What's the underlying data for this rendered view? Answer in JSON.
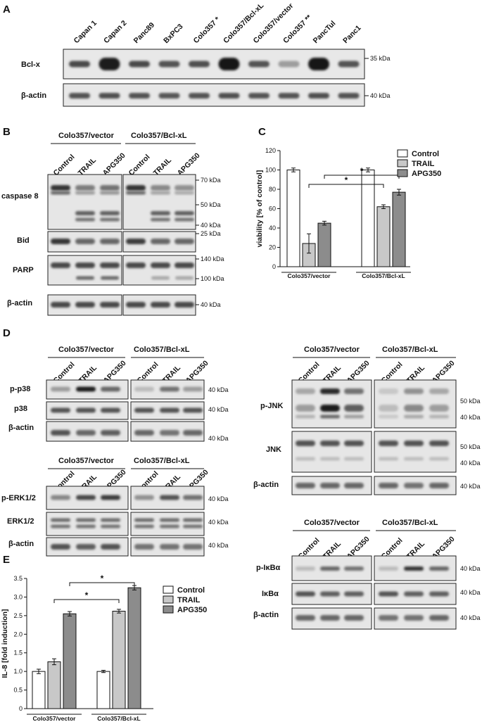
{
  "panels": {
    "a": "A",
    "b": "B",
    "c": "C",
    "d": "D",
    "e": "E"
  },
  "panel_a": {
    "lanes": [
      "Capan 1",
      "Capan 2",
      "Panc89",
      "BxPC3",
      "Colo357 *",
      "Colo357/Bcl-xL",
      "Colo357/vector",
      "Colo357 **",
      "PancTul",
      "Panc1"
    ],
    "rows": [
      {
        "label": "Bcl-x",
        "kda": "35 kDa",
        "intensity": [
          0.75,
          0.95,
          0.75,
          0.7,
          0.72,
          1.0,
          0.7,
          0.35,
          0.98,
          0.7
        ]
      },
      {
        "label": "β-actin",
        "kda": "40 kDa",
        "intensity": [
          0.7,
          0.72,
          0.7,
          0.68,
          0.7,
          0.72,
          0.7,
          0.7,
          0.72,
          0.7
        ]
      }
    ]
  },
  "groups": {
    "vector": "Colo357/vector",
    "bcl": "Colo357/Bcl-xL"
  },
  "treatments": [
    "Control",
    "TRAIL",
    "APG350"
  ],
  "panel_b": {
    "rows": [
      {
        "label": "caspase 8",
        "kda": [
          "70 kDa",
          "50 kDa",
          "40 kDa"
        ]
      },
      {
        "label": "Bid",
        "kda": [
          "25 kDa"
        ]
      },
      {
        "label": "PARP",
        "kda": [
          "140 kDa",
          "100 kDa"
        ]
      },
      {
        "label": "β-actin",
        "kda": [
          "40 kDa"
        ]
      }
    ]
  },
  "panel_d": {
    "p38_rows": [
      {
        "label": "p-p38",
        "kda": "40 kDa"
      },
      {
        "label": "p38",
        "kda": "40 kDa"
      },
      {
        "label": "β-actin",
        "kda": "40 kDa"
      }
    ],
    "erk_rows": [
      {
        "label": "p-ERK1/2",
        "kda": "40 kDa"
      },
      {
        "label": "ERK1/2",
        "kda": "40 kDa"
      },
      {
        "label": "β-actin",
        "kda": "40 kDa"
      }
    ],
    "jnk_rows": [
      {
        "label": "p-JNK",
        "kda": [
          "50 kDa",
          "40 kDa"
        ]
      },
      {
        "label": "JNK",
        "kda": [
          "50 kDa",
          "40 kDa"
        ]
      },
      {
        "label": "β-actin",
        "kda": [
          "40 kDa"
        ]
      }
    ],
    "ikb_rows": [
      {
        "label": "p-IκBα",
        "kda": "40 kDa"
      },
      {
        "label": "IκBα",
        "kda": "40 kDa"
      },
      {
        "label": "β-actin",
        "kda": "40 kDa"
      }
    ]
  },
  "chart_data": [
    {
      "type": "bar",
      "panel": "C",
      "ylabel": "viability [% of control]",
      "ylim": [
        0,
        120
      ],
      "yticks": [
        0,
        20,
        40,
        60,
        80,
        100,
        120
      ],
      "categories": [
        "Colo357/vector",
        "Colo357/Bcl-xL"
      ],
      "series": [
        {
          "name": "Control",
          "values": [
            100,
            100
          ],
          "errors": [
            2,
            2
          ],
          "color": "#ffffff"
        },
        {
          "name": "TRAIL",
          "values": [
            24,
            62
          ],
          "errors": [
            10,
            2
          ],
          "color": "#c8c8c8"
        },
        {
          "name": "APG350",
          "values": [
            45,
            77
          ],
          "errors": [
            2,
            3
          ],
          "color": "#8c8c8c"
        }
      ],
      "significance": [
        "*",
        "*"
      ],
      "legend": "top-right"
    },
    {
      "type": "bar",
      "panel": "E",
      "ylabel": "IL-8 [fold induction]",
      "ylim": [
        0,
        3.5
      ],
      "yticks": [
        "0",
        "0.5",
        "1.0",
        "1.5",
        "2.0",
        "2.5",
        "3.0",
        "3.5"
      ],
      "categories": [
        "Colo357/vector",
        "Colo357/Bcl-xL"
      ],
      "series": [
        {
          "name": "Control",
          "values": [
            1.0,
            1.0
          ],
          "errors": [
            0.06,
            0.03
          ],
          "color": "#ffffff"
        },
        {
          "name": "TRAIL",
          "values": [
            1.26,
            2.62
          ],
          "errors": [
            0.08,
            0.05
          ],
          "color": "#c8c8c8"
        },
        {
          "name": "APG350",
          "values": [
            2.55,
            3.25
          ],
          "errors": [
            0.06,
            0.06
          ],
          "color": "#8c8c8c"
        }
      ],
      "significance": [
        "*",
        "*"
      ],
      "legend": "top-right"
    }
  ]
}
